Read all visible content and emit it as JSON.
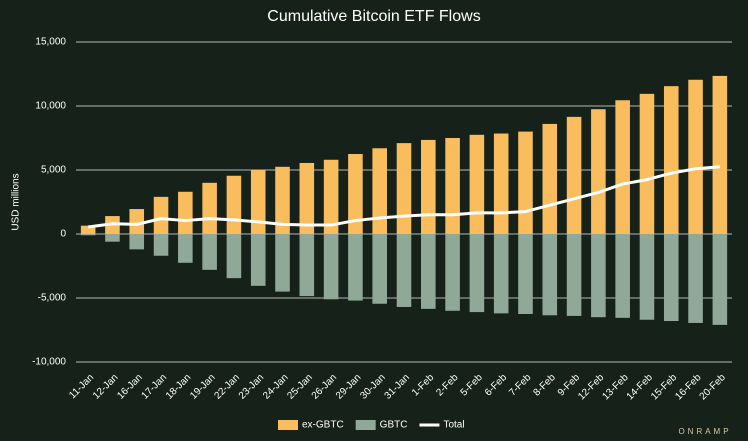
{
  "chart_data": {
    "type": "bar",
    "title": "Cumulative Bitcoin ETF Flows",
    "y_label": "USD millions",
    "brand": "ONRAMP",
    "categories": [
      "11-Jan",
      "12-Jan",
      "16-Jan",
      "17-Jan",
      "18-Jan",
      "19-Jan",
      "22-Jan",
      "23-Jan",
      "24-Jan",
      "25-Jan",
      "26-Jan",
      "29-Jan",
      "30-Jan",
      "31-Jan",
      "1-Feb",
      "2-Feb",
      "5-Feb",
      "6-Feb",
      "7-Feb",
      "8-Feb",
      "9-Feb",
      "12-Feb",
      "13-Feb",
      "14-Feb",
      "15-Feb",
      "16-Feb",
      "20-Feb"
    ],
    "series": [
      {
        "name": "ex-GBTC",
        "type": "bar",
        "color": "#f9bd5d",
        "values": [
          650,
          1400,
          1950,
          2900,
          3300,
          4000,
          4550,
          5000,
          5250,
          5550,
          5800,
          6250,
          6700,
          7100,
          7350,
          7500,
          7750,
          7850,
          8000,
          8600,
          9150,
          9750,
          10450,
          10950,
          11550,
          12050,
          12350
        ]
      },
      {
        "name": "GBTC",
        "type": "bar",
        "color": "#8fa898",
        "values": [
          -100,
          -600,
          -1200,
          -1700,
          -2250,
          -2800,
          -3450,
          -4050,
          -4500,
          -4850,
          -5100,
          -5200,
          -5450,
          -5700,
          -5850,
          -6000,
          -6100,
          -6200,
          -6250,
          -6350,
          -6400,
          -6500,
          -6550,
          -6700,
          -6800,
          -6950,
          -7100
        ]
      },
      {
        "name": "Total",
        "type": "line",
        "color": "#ffffff",
        "values": [
          550,
          800,
          750,
          1200,
          1050,
          1200,
          1100,
          950,
          750,
          700,
          700,
          1050,
          1250,
          1400,
          1500,
          1500,
          1650,
          1650,
          1750,
          2250,
          2750,
          3250,
          3900,
          4250,
          4750,
          5100,
          5250
        ]
      }
    ],
    "ylim": [
      -10000,
      15000
    ],
    "yticks": [
      {
        "value": -10000,
        "label": "-10,000"
      },
      {
        "value": -5000,
        "label": "-5,000"
      },
      0,
      {
        "value": 5000,
        "label": "5,000"
      },
      {
        "value": 10000,
        "label": "10,000"
      },
      {
        "value": 15000,
        "label": "15,000"
      }
    ],
    "grid": true,
    "legend": "bottom"
  }
}
